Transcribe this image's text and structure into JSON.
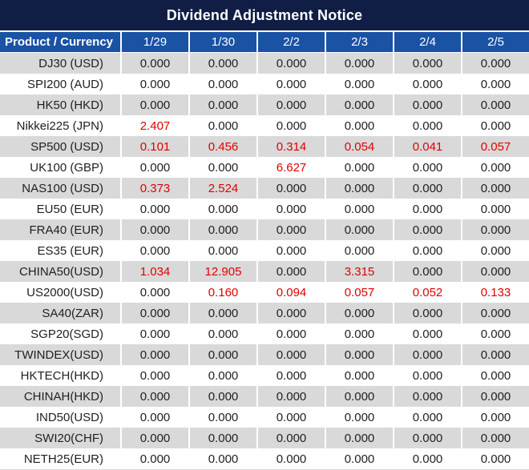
{
  "title": "Dividend Adjustment Notice",
  "header": {
    "product_label": "Product / Currency",
    "dates": [
      "1/29",
      "1/30",
      "2/2",
      "2/3",
      "2/4",
      "2/5"
    ]
  },
  "rows": [
    {
      "product": "DJ30 (USD)",
      "values": [
        "0.000",
        "0.000",
        "0.000",
        "0.000",
        "0.000",
        "0.000"
      ],
      "red": [
        0,
        0,
        0,
        0,
        0,
        0
      ]
    },
    {
      "product": "SPI200 (AUD)",
      "values": [
        "0.000",
        "0.000",
        "0.000",
        "0.000",
        "0.000",
        "0.000"
      ],
      "red": [
        0,
        0,
        0,
        0,
        0,
        0
      ]
    },
    {
      "product": "HK50 (HKD)",
      "values": [
        "0.000",
        "0.000",
        "0.000",
        "0.000",
        "0.000",
        "0.000"
      ],
      "red": [
        0,
        0,
        0,
        0,
        0,
        0
      ]
    },
    {
      "product": "Nikkei225 (JPN)",
      "values": [
        "2.407",
        "0.000",
        "0.000",
        "0.000",
        "0.000",
        "0.000"
      ],
      "red": [
        1,
        0,
        0,
        0,
        0,
        0
      ]
    },
    {
      "product": "SP500 (USD)",
      "values": [
        "0.101",
        "0.456",
        "0.314",
        "0.054",
        "0.041",
        "0.057"
      ],
      "red": [
        1,
        1,
        1,
        1,
        1,
        1
      ]
    },
    {
      "product": "UK100 (GBP)",
      "values": [
        "0.000",
        "0.000",
        "6.627",
        "0.000",
        "0.000",
        "0.000"
      ],
      "red": [
        0,
        0,
        1,
        0,
        0,
        0
      ]
    },
    {
      "product": "NAS100 (USD)",
      "values": [
        "0.373",
        "2.524",
        "0.000",
        "0.000",
        "0.000",
        "0.000"
      ],
      "red": [
        1,
        1,
        0,
        0,
        0,
        0
      ]
    },
    {
      "product": "EU50 (EUR)",
      "values": [
        "0.000",
        "0.000",
        "0.000",
        "0.000",
        "0.000",
        "0.000"
      ],
      "red": [
        0,
        0,
        0,
        0,
        0,
        0
      ]
    },
    {
      "product": "FRA40 (EUR)",
      "values": [
        "0.000",
        "0.000",
        "0.000",
        "0.000",
        "0.000",
        "0.000"
      ],
      "red": [
        0,
        0,
        0,
        0,
        0,
        0
      ]
    },
    {
      "product": "ES35 (EUR)",
      "values": [
        "0.000",
        "0.000",
        "0.000",
        "0.000",
        "0.000",
        "0.000"
      ],
      "red": [
        0,
        0,
        0,
        0,
        0,
        0
      ]
    },
    {
      "product": "CHINA50(USD)",
      "values": [
        "1.034",
        "12.905",
        "0.000",
        "3.315",
        "0.000",
        "0.000"
      ],
      "red": [
        1,
        1,
        0,
        1,
        0,
        0
      ]
    },
    {
      "product": "US2000(USD)",
      "values": [
        "0.000",
        "0.160",
        "0.094",
        "0.057",
        "0.052",
        "0.133"
      ],
      "red": [
        0,
        1,
        1,
        1,
        1,
        1
      ]
    },
    {
      "product": "SA40(ZAR)",
      "values": [
        "0.000",
        "0.000",
        "0.000",
        "0.000",
        "0.000",
        "0.000"
      ],
      "red": [
        0,
        0,
        0,
        0,
        0,
        0
      ]
    },
    {
      "product": "SGP20(SGD)",
      "values": [
        "0.000",
        "0.000",
        "0.000",
        "0.000",
        "0.000",
        "0.000"
      ],
      "red": [
        0,
        0,
        0,
        0,
        0,
        0
      ]
    },
    {
      "product": "TWINDEX(USD)",
      "values": [
        "0.000",
        "0.000",
        "0.000",
        "0.000",
        "0.000",
        "0.000"
      ],
      "red": [
        0,
        0,
        0,
        0,
        0,
        0
      ]
    },
    {
      "product": "HKTECH(HKD)",
      "values": [
        "0.000",
        "0.000",
        "0.000",
        "0.000",
        "0.000",
        "0.000"
      ],
      "red": [
        0,
        0,
        0,
        0,
        0,
        0
      ]
    },
    {
      "product": "CHINAH(HKD)",
      "values": [
        "0.000",
        "0.000",
        "0.000",
        "0.000",
        "0.000",
        "0.000"
      ],
      "red": [
        0,
        0,
        0,
        0,
        0,
        0
      ]
    },
    {
      "product": "IND50(USD)",
      "values": [
        "0.000",
        "0.000",
        "0.000",
        "0.000",
        "0.000",
        "0.000"
      ],
      "red": [
        0,
        0,
        0,
        0,
        0,
        0
      ]
    },
    {
      "product": "SWI20(CHF)",
      "values": [
        "0.000",
        "0.000",
        "0.000",
        "0.000",
        "0.000",
        "0.000"
      ],
      "red": [
        0,
        0,
        0,
        0,
        0,
        0
      ]
    },
    {
      "product": "NETH25(EUR)",
      "values": [
        "0.000",
        "0.000",
        "0.000",
        "0.000",
        "0.000",
        "0.000"
      ],
      "red": [
        0,
        0,
        0,
        0,
        0,
        0
      ]
    }
  ],
  "colors": {
    "title_bg": "#101e45",
    "header_bg": "#1a52a4",
    "row_alt_bg": "#d9d9d9",
    "red_text": "#e10000"
  }
}
